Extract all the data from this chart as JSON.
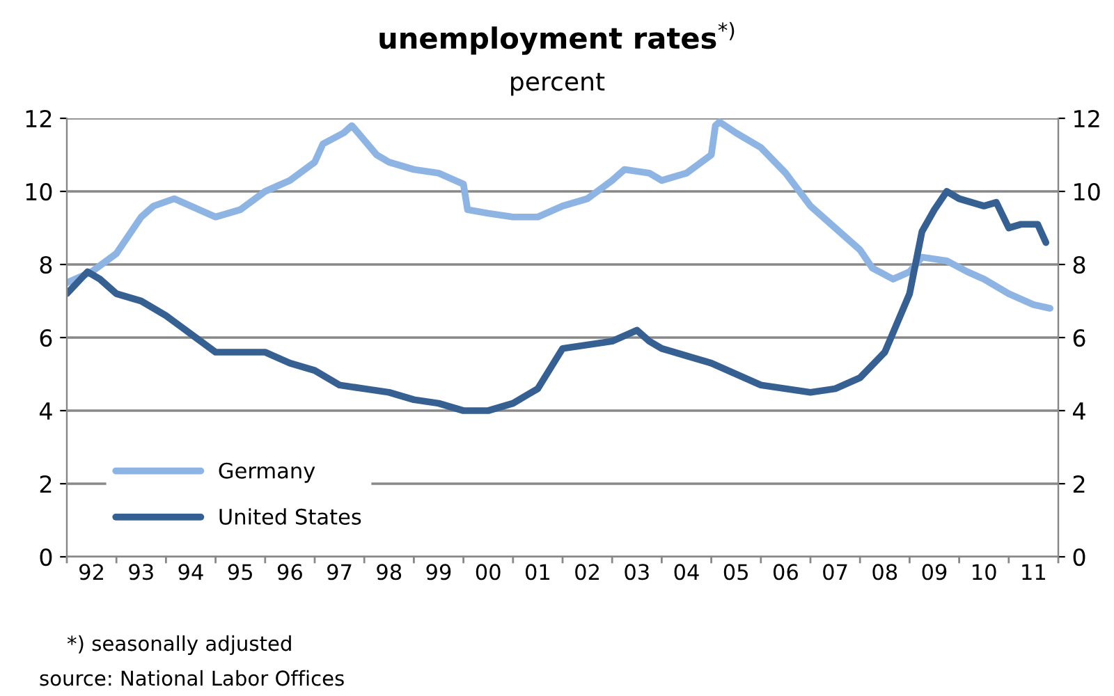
{
  "chart_data": {
    "type": "line",
    "title": "unemployment rates$^{*)}$",
    "subtitle": "percent",
    "annotations": [
      "*) seasonally adjusted",
      "source: National Labor Offices"
    ],
    "xlim": [
      "1992-01",
      "2012-01"
    ],
    "xticks": [
      {
        "value": "1992-07",
        "label": "92"
      },
      {
        "value": "1993-07",
        "label": "93"
      },
      {
        "value": "1994-07",
        "label": "94"
      },
      {
        "value": "1995-07",
        "label": "95"
      },
      {
        "value": "1996-07",
        "label": "96"
      },
      {
        "value": "1997-07",
        "label": "97"
      },
      {
        "value": "1998-07",
        "label": "98"
      },
      {
        "value": "1999-07",
        "label": "99"
      },
      {
        "value": "2000-07",
        "label": "00"
      },
      {
        "value": "2001-07",
        "label": "01"
      },
      {
        "value": "2002-07",
        "label": "02"
      },
      {
        "value": "2003-07",
        "label": "03"
      },
      {
        "value": "2004-07",
        "label": "04"
      },
      {
        "value": "2005-07",
        "label": "05"
      },
      {
        "value": "2006-07",
        "label": "06"
      },
      {
        "value": "2007-07",
        "label": "07"
      },
      {
        "value": "2008-07",
        "label": "08"
      },
      {
        "value": "2009-07",
        "label": "09"
      },
      {
        "value": "2010-07",
        "label": "10"
      },
      {
        "value": "2011-07",
        "label": "11"
      }
    ],
    "ylim": [
      0,
      12
    ],
    "yticks": [
      0,
      2,
      4,
      6,
      8,
      10,
      12
    ],
    "y2lim": [
      0,
      12
    ],
    "y2ticks": [
      0,
      2,
      4,
      6,
      8,
      10,
      12
    ],
    "grid": "y",
    "legend": "bottom left",
    "line_style": "solid",
    "series": [
      {
        "name": "Germany",
        "color": "#8db4e2",
        "x": [
          "1992-01",
          "1992-07",
          "1993-01",
          "1993-07",
          "1993-10",
          "1994-03",
          "1994-07",
          "1995-01",
          "1995-07",
          "1996-01",
          "1996-07",
          "1997-01",
          "1997-03",
          "1997-08",
          "1997-10",
          "1998-04",
          "1998-07",
          "1999-01",
          "1999-07",
          "2000-01",
          "2000-02",
          "2000-07",
          "2001-01",
          "2001-07",
          "2002-01",
          "2002-07",
          "2003-01",
          "2003-04",
          "2003-10",
          "2004-01",
          "2004-07",
          "2005-01",
          "2005-02",
          "2005-03",
          "2005-07",
          "2006-01",
          "2006-07",
          "2007-01",
          "2007-07",
          "2008-01",
          "2008-04",
          "2008-09",
          "2009-01",
          "2009-04",
          "2009-10",
          "2010-03",
          "2010-07",
          "2011-01",
          "2011-07",
          "2011-11"
        ],
        "values": [
          7.5,
          7.8,
          8.3,
          9.3,
          9.6,
          9.8,
          9.6,
          9.3,
          9.5,
          10.0,
          10.3,
          10.8,
          11.3,
          11.6,
          11.8,
          11.0,
          10.8,
          10.6,
          10.5,
          10.2,
          9.5,
          9.4,
          9.3,
          9.3,
          9.6,
          9.8,
          10.3,
          10.6,
          10.5,
          10.3,
          10.5,
          11.0,
          11.8,
          11.9,
          11.6,
          11.2,
          10.5,
          9.6,
          9.0,
          8.4,
          7.9,
          7.6,
          7.8,
          8.2,
          8.1,
          7.8,
          7.6,
          7.2,
          6.9,
          6.8
        ]
      },
      {
        "name": "United States",
        "color": "#366092",
        "x": [
          "1992-01",
          "1992-06",
          "1992-09",
          "1993-01",
          "1993-07",
          "1994-01",
          "1994-07",
          "1995-01",
          "1995-07",
          "1996-01",
          "1996-07",
          "1997-01",
          "1997-07",
          "1998-01",
          "1998-07",
          "1999-01",
          "1999-07",
          "2000-01",
          "2000-07",
          "2001-01",
          "2001-07",
          "2002-01",
          "2002-07",
          "2003-01",
          "2003-07",
          "2003-10",
          "2004-01",
          "2004-07",
          "2005-01",
          "2005-07",
          "2006-01",
          "2006-07",
          "2007-01",
          "2007-07",
          "2008-01",
          "2008-07",
          "2009-01",
          "2009-04",
          "2009-07",
          "2009-10",
          "2010-01",
          "2010-07",
          "2010-10",
          "2011-01",
          "2011-04",
          "2011-08",
          "2011-10"
        ],
        "values": [
          7.2,
          7.8,
          7.6,
          7.2,
          7.0,
          6.6,
          6.1,
          5.6,
          5.6,
          5.6,
          5.3,
          5.1,
          4.7,
          4.6,
          4.5,
          4.3,
          4.2,
          4.0,
          4.0,
          4.2,
          4.6,
          5.7,
          5.8,
          5.9,
          6.2,
          5.9,
          5.7,
          5.5,
          5.3,
          5.0,
          4.7,
          4.6,
          4.5,
          4.6,
          4.9,
          5.6,
          7.2,
          8.9,
          9.5,
          10.0,
          9.8,
          9.6,
          9.7,
          9.0,
          9.1,
          9.1,
          8.6
        ]
      }
    ]
  }
}
